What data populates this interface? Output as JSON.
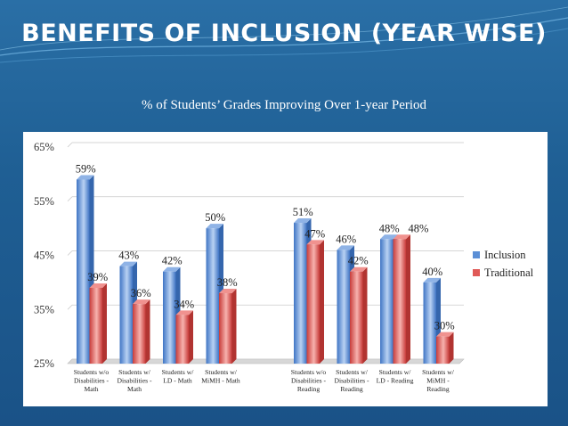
{
  "slide": {
    "title": "BENEFITS OF INCLUSION (YEAR WISE)",
    "subtitle": "% of Students’ Grades Improving Over 1-year Period"
  },
  "colors": {
    "inclusion": "#5b8fd6",
    "traditional": "#e05a57",
    "background": "#1f5f94"
  },
  "chart_data": {
    "type": "bar",
    "title": "",
    "xlabel": "",
    "ylabel": "",
    "ylim": [
      25,
      65
    ],
    "y_ticks": [
      "25%",
      "35%",
      "45%",
      "55%",
      "65%"
    ],
    "y_tick_values": [
      25,
      35,
      45,
      55,
      65
    ],
    "legend_position": "right",
    "categories": [
      [
        "Students w/o",
        "Disabilities -",
        "Math"
      ],
      [
        "Students w/",
        "Disabilities -",
        "Math"
      ],
      [
        "Students w/",
        "LD - Math"
      ],
      [
        "Students w/",
        "MiMH - Math"
      ],
      [
        "Students w/o",
        "Disabilities -",
        "Reading"
      ],
      [
        "Students w/",
        "Disabilities -",
        "Reading"
      ],
      [
        "Students w/",
        "LD - Reading"
      ],
      [
        "Students w/",
        "MiMH -",
        "Reading"
      ]
    ],
    "series": [
      {
        "name": "Inclusion",
        "values": [
          59,
          43,
          42,
          50,
          51,
          46,
          48,
          40
        ],
        "labels": [
          "59%",
          "43%",
          "42%",
          "50%",
          "51%",
          "46%",
          "48%",
          "40%"
        ]
      },
      {
        "name": "Traditional",
        "values": [
          39,
          36,
          34,
          38,
          47,
          42,
          48,
          30
        ],
        "labels": [
          "39%",
          "36%",
          "34%",
          "38%",
          "47%",
          "42%",
          "48%",
          "30%"
        ]
      }
    ]
  }
}
